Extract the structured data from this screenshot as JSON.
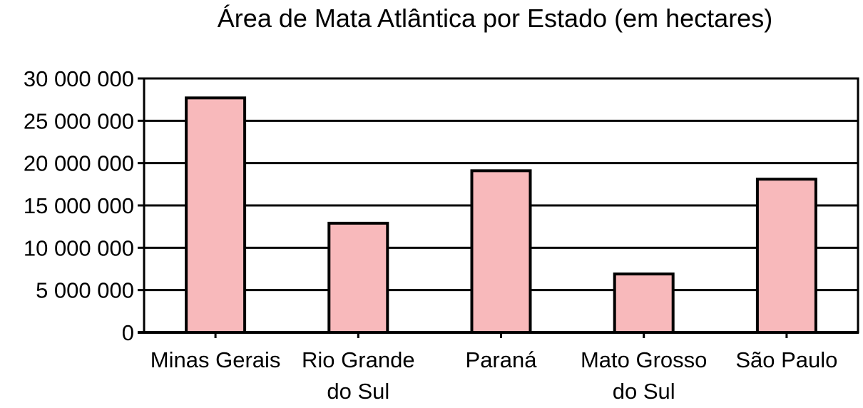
{
  "chart_data": {
    "type": "bar",
    "title": "Área de Mata Atlântica por Estado (em hectares)",
    "xlabel": "",
    "ylabel": "",
    "categories": [
      [
        "Minas Gerais"
      ],
      [
        "Rio Grande",
        "do Sul"
      ],
      [
        "Paraná"
      ],
      [
        "Mato Grosso",
        "do Sul"
      ],
      [
        "São Paulo"
      ]
    ],
    "values": [
      27700000,
      12900000,
      19100000,
      6900000,
      18100000
    ],
    "ylim": [
      0,
      30000000
    ],
    "yticks": [
      0,
      5000000,
      10000000,
      15000000,
      20000000,
      25000000,
      30000000
    ],
    "ytick_labels": [
      "0",
      "5 000 000",
      "10 000 000",
      "15 000 000",
      "20 000 000",
      "25 000 000",
      "30 000 000"
    ],
    "grid": true,
    "legend": "none",
    "colors": {
      "bar_fill": "#f8b9bb",
      "bar_stroke": "#000000",
      "grid": "#000000",
      "frame": "#000000"
    }
  }
}
